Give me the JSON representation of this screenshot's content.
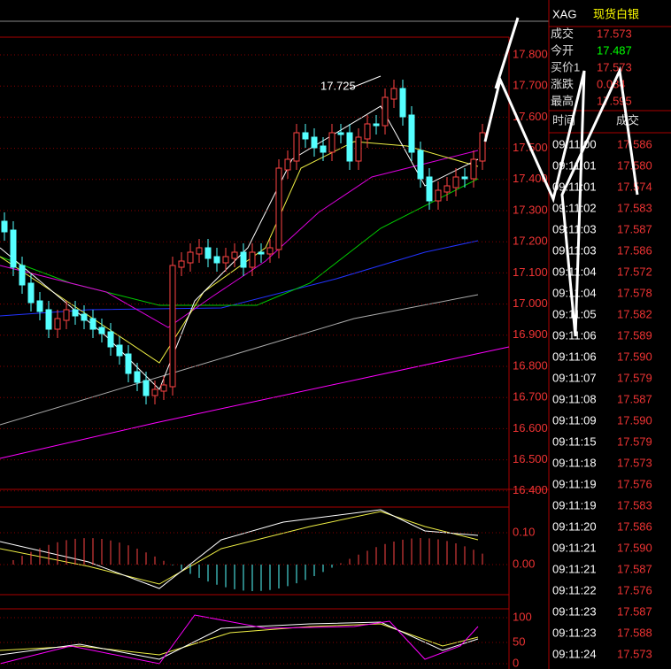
{
  "chart": {
    "price_ticks": [
      "17.800",
      "17.700",
      "17.600",
      "17.500",
      "17.400",
      "17.300",
      "17.200",
      "17.100",
      "17.000",
      "16.900",
      "16.800",
      "16.700",
      "16.600",
      "16.500",
      "16.400"
    ],
    "annotation": "17.725",
    "macd_ticks": [
      "0.10",
      "0.00"
    ],
    "kdj_ticks": [
      "100",
      "50",
      "0"
    ]
  },
  "quote": {
    "symbol": "XAG",
    "name": "现货白银",
    "rows": [
      {
        "label": "成交",
        "value": "17.573"
      },
      {
        "label": "今开",
        "value": "17.487"
      },
      {
        "label": "买价1",
        "value": "17.573"
      },
      {
        "label": "涨跌",
        "value": "0.084"
      },
      {
        "label": "最高",
        "value": "17.595"
      }
    ]
  },
  "trades": {
    "header": [
      "时间",
      "成交"
    ],
    "rows": [
      [
        "09:11:00",
        "17.586"
      ],
      [
        "09:11:01",
        "17.580"
      ],
      [
        "09:11:01",
        "17.574"
      ],
      [
        "09:11:02",
        "17.583"
      ],
      [
        "09:11:03",
        "17.587"
      ],
      [
        "09:11:03",
        "17.586"
      ],
      [
        "09:11:04",
        "17.572"
      ],
      [
        "09:11:04",
        "17.578"
      ],
      [
        "09:11:05",
        "17.582"
      ],
      [
        "09:11:06",
        "17.589"
      ],
      [
        "09:11:06",
        "17.590"
      ],
      [
        "09:11:07",
        "17.579"
      ],
      [
        "09:11:08",
        "17.587"
      ],
      [
        "09:11:09",
        "17.590"
      ],
      [
        "09:11:15",
        "17.579"
      ],
      [
        "09:11:18",
        "17.573"
      ],
      [
        "09:11:19",
        "17.576"
      ],
      [
        "09:11:19",
        "17.583"
      ],
      [
        "09:11:20",
        "17.586"
      ],
      [
        "09:11:21",
        "17.590"
      ],
      [
        "09:11:21",
        "17.587"
      ],
      [
        "09:11:22",
        "17.576"
      ],
      [
        "09:11:23",
        "17.587"
      ],
      [
        "09:11:23",
        "17.588"
      ],
      [
        "09:11:24",
        "17.573"
      ]
    ]
  }
}
